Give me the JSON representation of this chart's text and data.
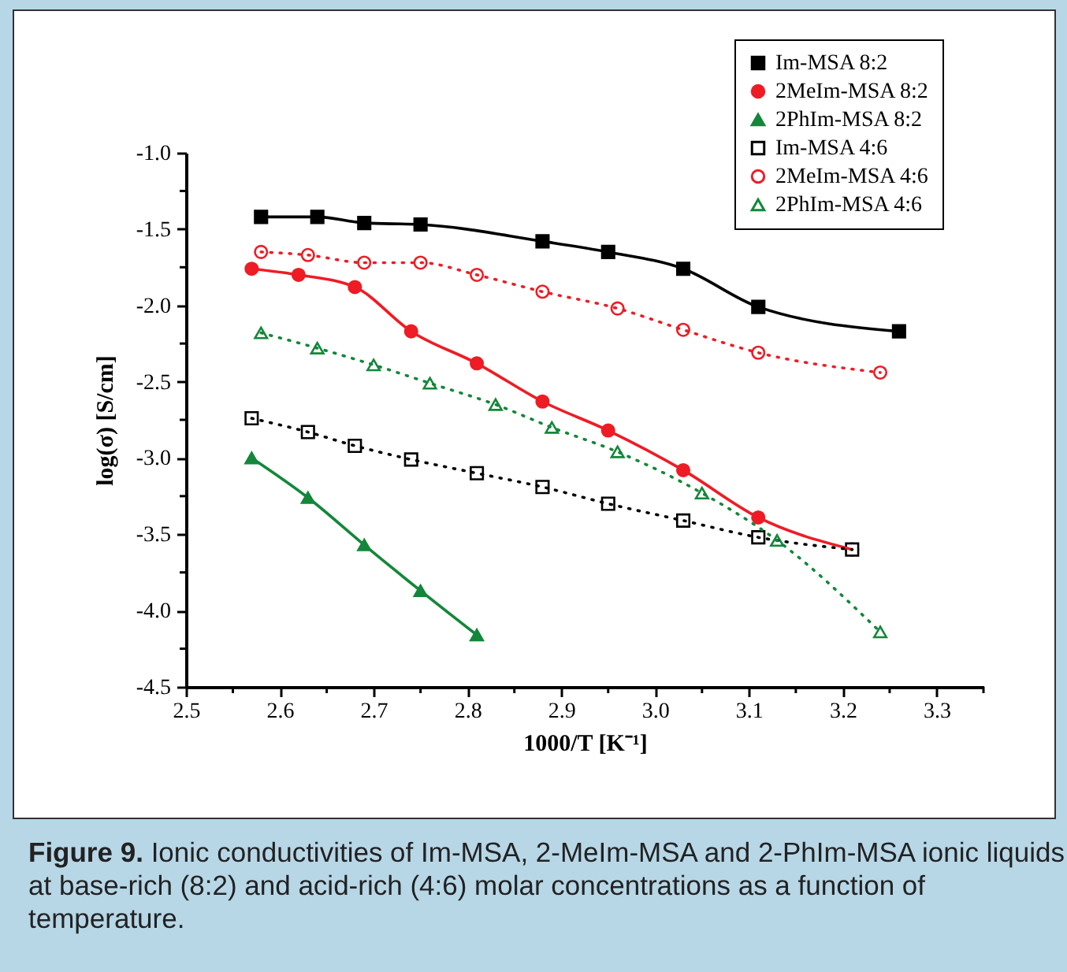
{
  "chart_data": {
    "type": "line",
    "xlabel": "1000/T [K⁻¹]",
    "ylabel": "log(σ) [S/cm]",
    "xlim": [
      2.5,
      3.35
    ],
    "xticks": [
      2.5,
      {
        "value": 2.55,
        "label": null
      },
      2.6,
      {
        "value": 2.65,
        "label": null
      },
      2.7,
      {
        "value": 2.75,
        "label": null
      },
      2.8,
      {
        "value": 2.85,
        "label": null
      },
      2.9,
      {
        "value": 2.95,
        "label": null
      },
      {
        "value": 3,
        "label": "3.0"
      },
      {
        "value": 3.05,
        "label": null
      },
      3.1,
      {
        "value": 3.15,
        "label": null
      },
      3.2,
      {
        "value": 3.25,
        "label": null
      },
      3.3,
      {
        "value": 3.35,
        "label": null
      }
    ],
    "ylim": [
      -4.5,
      -1.0
    ],
    "yticks": [
      {
        "value": -4.5,
        "label": "-4.5"
      },
      {
        "value": -4.25,
        "label": null
      },
      {
        "value": -4.0,
        "label": "-4.0"
      },
      {
        "value": -3.75,
        "label": null
      },
      {
        "value": -3.5,
        "label": "-3.5"
      },
      {
        "value": -3.25,
        "label": null
      },
      {
        "value": -3.0,
        "label": "-3.0"
      },
      {
        "value": -2.75,
        "label": null
      },
      {
        "value": -2.5,
        "label": "-2.5"
      },
      {
        "value": -2.25,
        "label": null
      },
      {
        "value": -2.0,
        "label": "-2.0"
      },
      {
        "value": -1.75,
        "label": null
      },
      {
        "value": -1.5,
        "label": "-1.5"
      },
      {
        "value": -1.25,
        "label": null
      },
      {
        "value": -1.0,
        "label": "-1.0"
      }
    ],
    "legend": "top right",
    "grid": false,
    "series": [
      {
        "name": "Im-MSA 8:2",
        "color": "#000000",
        "marker": "square",
        "line_style": "solid",
        "x": [
          2.58,
          2.64,
          2.69,
          2.75,
          2.88,
          2.95,
          3.03,
          3.11,
          3.26
        ],
        "values": [
          -1.42,
          -1.42,
          -1.46,
          -1.47,
          -1.58,
          -1.65,
          -1.76,
          -2.01,
          -2.17
        ]
      },
      {
        "name": "2MeIm-MSA 8:2",
        "color": "#ee1c25",
        "marker": "circle",
        "line_style": "solid",
        "x": [
          2.57,
          2.62,
          2.68,
          2.74,
          2.81,
          2.88,
          2.95,
          3.03,
          3.11,
          3.21
        ],
        "values": [
          -1.76,
          -1.8,
          -1.88,
          -2.17,
          -2.38,
          -2.63,
          -2.82,
          -3.08,
          -3.39,
          -3.6
        ]
      },
      {
        "name": "2PhIm-MSA 8:2",
        "color": "#13873a",
        "marker": "triangle",
        "line_style": "solid",
        "x": [
          2.57,
          2.63,
          2.69,
          2.75,
          2.81
        ],
        "values": [
          -3.0,
          -3.26,
          -3.57,
          -3.87,
          -4.16
        ]
      },
      {
        "name": "Im-MSA 4:6",
        "color": "#000000",
        "marker": "square",
        "line_style": "dotted",
        "x": [
          2.57,
          2.63,
          2.68,
          2.74,
          2.81,
          2.88,
          2.95,
          3.03,
          3.11,
          3.21
        ],
        "values": [
          -2.74,
          -2.83,
          -2.92,
          -3.01,
          -3.1,
          -3.19,
          -3.3,
          -3.41,
          -3.52,
          -3.6
        ]
      },
      {
        "name": "2MeIm-MSA 4:6",
        "color": "#ee1c25",
        "marker": "circle",
        "line_style": "dotted",
        "x": [
          2.58,
          2.63,
          2.69,
          2.75,
          2.81,
          2.88,
          2.96,
          3.03,
          3.11,
          3.24
        ],
        "values": [
          -1.65,
          -1.67,
          -1.72,
          -1.72,
          -1.8,
          -1.91,
          -2.02,
          -2.16,
          -2.31,
          -2.44
        ]
      },
      {
        "name": "2PhIm-MSA 4:6",
        "color": "#13873a",
        "marker": "triangle",
        "line_style": "dotted",
        "x": [
          2.58,
          2.64,
          2.7,
          2.76,
          2.83,
          2.89,
          2.96,
          3.05,
          3.13,
          3.24
        ],
        "values": [
          -2.18,
          -2.28,
          -2.39,
          -2.51,
          -2.65,
          -2.8,
          -2.96,
          -3.23,
          -3.54,
          -4.14
        ]
      }
    ],
    "annotations": [
      "Figure 9.",
      "Ionic conductivities of Im-MSA, 2-MeIm-MSA and 2-PhIm-MSA ionic liquids at base-rich (8:2) and acid-rich (4:6) molar concentrations as a function of temperature."
    ]
  }
}
